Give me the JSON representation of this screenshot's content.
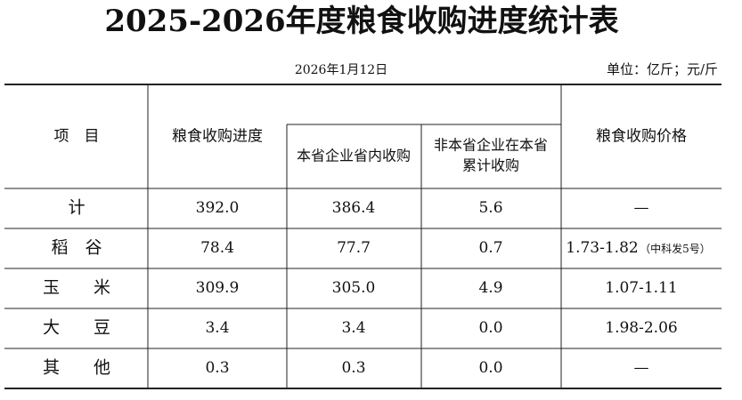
{
  "header": {
    "title": "2025-2026年度粮食收购进度统计表",
    "date": "2026年1月12日",
    "unit": "单位：亿斤；元/斤"
  },
  "table": {
    "columns": [
      "项　目",
      "粮食收购进度",
      "本省企业省内收购",
      [
        "非本省企业在本省",
        "累计收购"
      ],
      "粮食收购价格"
    ],
    "rows": [
      [
        "计",
        "392.0",
        "386.4",
        "5.6",
        "—"
      ],
      [
        "稻　谷",
        "78.4",
        "77.7",
        "0.7",
        "1.73-1.82"
      ],
      [
        "玉　　米",
        "309.9",
        "305.0",
        "4.9",
        "1.07-1.11"
      ],
      [
        "大　　豆",
        "3.4",
        "3.4",
        "0.0",
        "1.98-2.06"
      ],
      [
        "其　　他",
        "0.3",
        "0.3",
        "0.0",
        "—"
      ]
    ],
    "price_note": "（中科发5号）"
  }
}
